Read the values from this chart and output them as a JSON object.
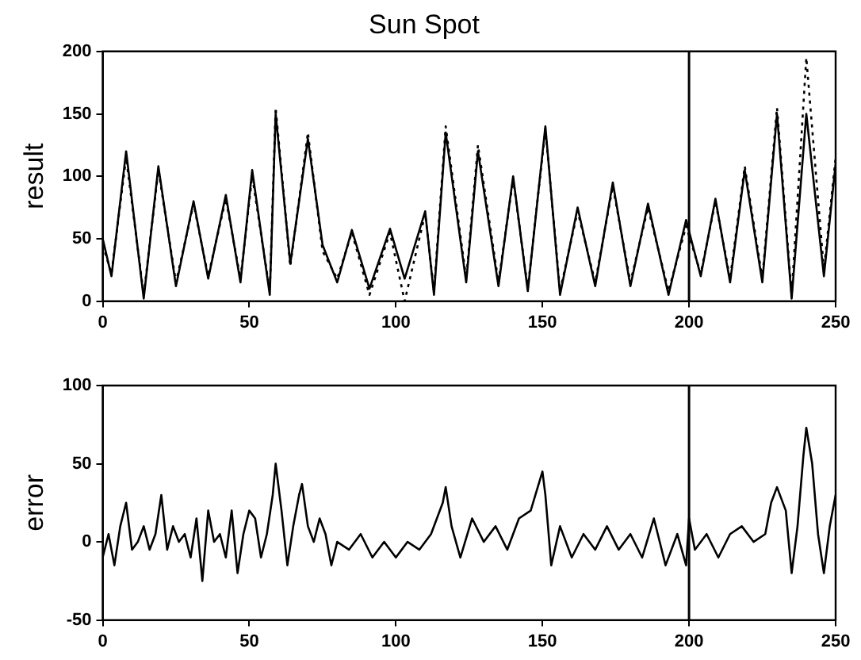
{
  "chart_data": [
    {
      "type": "line",
      "title": "Sun Spot",
      "ylabel": "result",
      "grid": false,
      "legend": false,
      "x": [
        0,
        3,
        8,
        14,
        19,
        25,
        31,
        36,
        42,
        47,
        51,
        57,
        59,
        64,
        70,
        75,
        80,
        85,
        91,
        98,
        103,
        110,
        113,
        117,
        124,
        128,
        135,
        140,
        145,
        151,
        156,
        162,
        168,
        174,
        180,
        186,
        193,
        199,
        204,
        209,
        214,
        219,
        225,
        230,
        235,
        240,
        246,
        250
      ],
      "series": [
        {
          "color": "#000000",
          "line_style": "solid",
          "values": [
            50,
            20,
            120,
            2,
            108,
            12,
            80,
            18,
            85,
            15,
            105,
            5,
            150,
            30,
            130,
            45,
            15,
            57,
            10,
            58,
            18,
            72,
            5,
            135,
            15,
            120,
            12,
            100,
            8,
            140,
            5,
            75,
            12,
            95,
            12,
            78,
            5,
            65,
            20,
            82,
            15,
            105,
            15,
            150,
            2,
            150,
            20,
            110
          ]
        },
        {
          "color": "#000000",
          "line_style": "dotted",
          "values": [
            45,
            22,
            115,
            5,
            105,
            15,
            78,
            20,
            82,
            18,
            100,
            8,
            155,
            28,
            135,
            40,
            18,
            55,
            5,
            55,
            0,
            70,
            8,
            140,
            18,
            125,
            15,
            98,
            10,
            138,
            8,
            72,
            15,
            92,
            15,
            75,
            8,
            60,
            22,
            80,
            18,
            108,
            18,
            155,
            5,
            195,
            25,
            115
          ]
        }
      ],
      "xlim": [
        0,
        250
      ],
      "xticks": [
        0,
        50,
        100,
        150,
        200,
        250
      ],
      "ylim": [
        0,
        200
      ],
      "yticks": [
        0,
        50,
        100,
        150,
        200
      ],
      "ref_lines": [
        {
          "axis": "x",
          "value": 200,
          "color": "#000000"
        }
      ]
    },
    {
      "type": "line",
      "ylabel": "error",
      "grid": false,
      "legend": false,
      "x": [
        0,
        2,
        4,
        6,
        8,
        10,
        12,
        14,
        16,
        18,
        20,
        22,
        24,
        26,
        28,
        30,
        32,
        34,
        36,
        38,
        40,
        42,
        44,
        46,
        48,
        50,
        52,
        54,
        56,
        58,
        59,
        61,
        63,
        65,
        67,
        68,
        70,
        72,
        74,
        76,
        78,
        80,
        84,
        88,
        92,
        96,
        100,
        104,
        108,
        112,
        114,
        116,
        117,
        119,
        122,
        126,
        130,
        134,
        138,
        142,
        146,
        150,
        151,
        153,
        156,
        160,
        164,
        168,
        172,
        176,
        180,
        184,
        188,
        192,
        196,
        199,
        200,
        202,
        206,
        210,
        214,
        218,
        222,
        226,
        228,
        230,
        233,
        235,
        237,
        239,
        240,
        242,
        244,
        246,
        248,
        250
      ],
      "series": [
        {
          "color": "#000000",
          "line_style": "solid",
          "values": [
            -10,
            5,
            -15,
            10,
            25,
            -5,
            0,
            10,
            -5,
            5,
            30,
            -5,
            10,
            0,
            5,
            -10,
            15,
            -25,
            20,
            0,
            5,
            -10,
            20,
            -20,
            5,
            20,
            15,
            -10,
            5,
            30,
            50,
            20,
            -15,
            10,
            30,
            37,
            10,
            0,
            15,
            5,
            -15,
            0,
            -5,
            5,
            -10,
            0,
            -10,
            0,
            -5,
            5,
            15,
            25,
            35,
            10,
            -10,
            15,
            0,
            10,
            -5,
            15,
            20,
            45,
            30,
            -15,
            10,
            -10,
            5,
            -5,
            10,
            -5,
            5,
            -10,
            15,
            -15,
            5,
            -15,
            15,
            -5,
            5,
            -10,
            5,
            10,
            0,
            5,
            25,
            35,
            20,
            -20,
            10,
            55,
            73,
            50,
            5,
            -20,
            10,
            30
          ]
        }
      ],
      "xlim": [
        0,
        250
      ],
      "xticks": [
        0,
        50,
        100,
        150,
        200,
        250
      ],
      "ylim": [
        -50,
        100
      ],
      "yticks": [
        -50,
        0,
        50,
        100
      ],
      "ref_lines": [
        {
          "axis": "x",
          "value": 200,
          "color": "#000000"
        }
      ]
    }
  ]
}
